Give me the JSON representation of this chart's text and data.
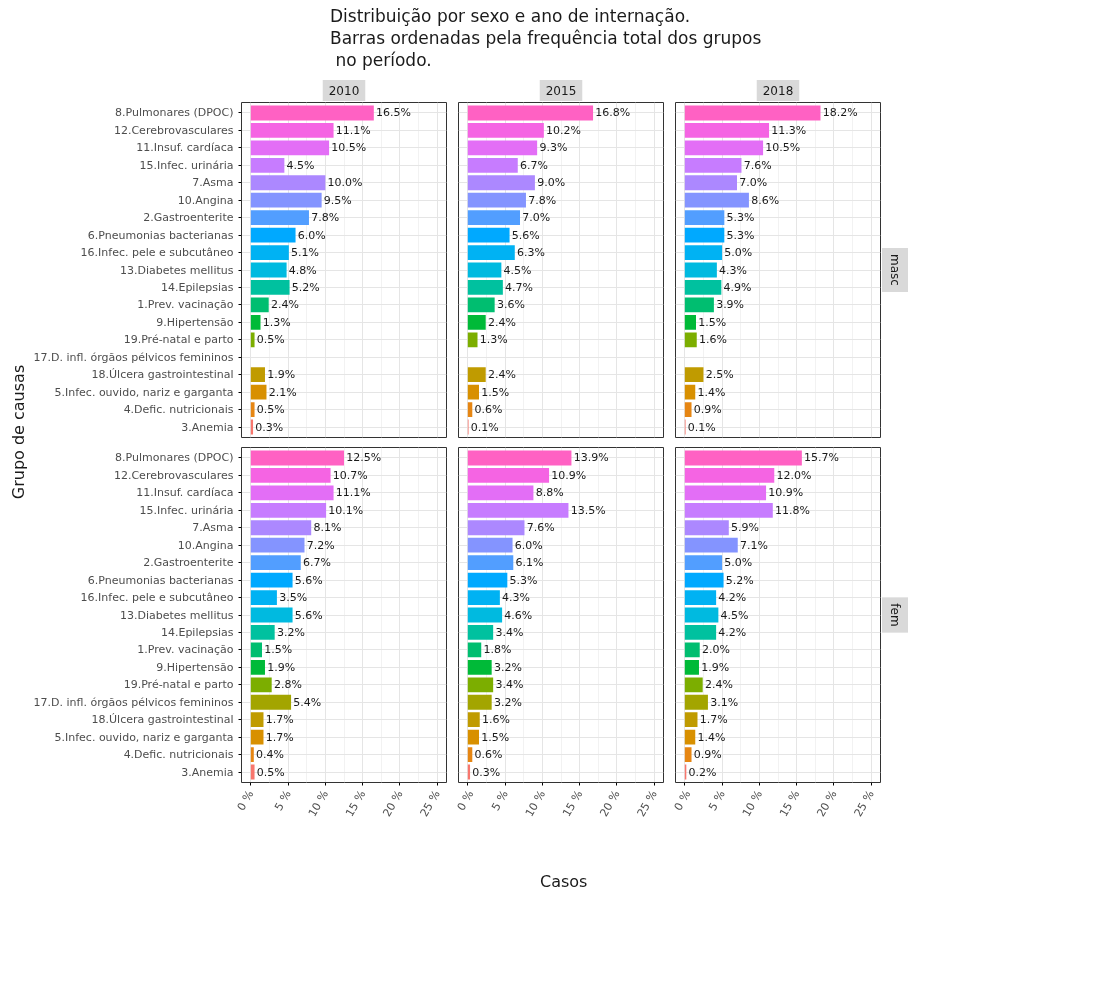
{
  "chart_data": [
    {
      "type": "other",
      "title": "Distribuição por sexo e ano de internação.\nBarras ordenadas pela frequência total dos grupos\n no período.",
      "xlabel": "Casos",
      "ylabel": "Grupo de causas"
    },
    {
      "type": "bar",
      "orientation": "horizontal",
      "title": "2010",
      "tick_labels": "y",
      "grid": true,
      "xlim": [
        -1.25,
        26.25
      ],
      "xticks": [
        0,
        5,
        10,
        15,
        20,
        25
      ],
      "categories": [
        "8.Pulmonares (DPOC)",
        "12.Cerebrovasculares",
        "11.Insuf. cardíaca",
        "15.Infec. urinária",
        "7.Asma",
        "10.Angina",
        "2.Gastroenterite",
        "6.Pneumonias bacterianas",
        "16.Infec. pele e subcutâneo",
        "13.Diabetes mellitus",
        "14.Epilepsias",
        "1.Prev. vacinação",
        "9.Hipertensão",
        "19.Pré-natal e parto",
        "17.D. infl. órgãos pélvicos femininos",
        "18.Úlcera gastrointestinal",
        "5.Infec. ouvido, nariz e garganta",
        "4.Defic. nutricionais",
        "3.Anemia"
      ],
      "colors": [
        "#ff61c3",
        "#f564e3",
        "#e36ef6",
        "#c77cff",
        "#ac88ff",
        "#8494ff",
        "#529eff",
        "#00a9ff",
        "#00b2f3",
        "#00bae0",
        "#00c19f",
        "#00be70",
        "#00ba38",
        "#7cae00",
        "#a3a500",
        "#c09b00",
        "#d89000",
        "#e68613",
        "#f8766d"
      ],
      "values": [
        16.5,
        11.1,
        10.5,
        4.5,
        10.0,
        9.5,
        7.8,
        6.0,
        5.1,
        4.8,
        5.2,
        2.4,
        1.3,
        0.5,
        null,
        1.9,
        2.1,
        0.5,
        0.3
      ],
      "value_labels": [
        "16.5%",
        "11.1%",
        "10.5%",
        "4.5%",
        "10.0%",
        "9.5%",
        "7.8%",
        "6.0%",
        "5.1%",
        "4.8%",
        "5.2%",
        "2.4%",
        "1.3%",
        "0.5%",
        null,
        "1.9%",
        "2.1%",
        "0.5%",
        "0.3%"
      ]
    },
    {
      "type": "bar",
      "orientation": "horizontal",
      "title": "2015",
      "tick_labels": false,
      "grid": true,
      "xlim": [
        -1.25,
        26.25
      ],
      "xticks": [
        0,
        5,
        10,
        15,
        20,
        25
      ],
      "categories": [
        null,
        null,
        null,
        null,
        null,
        null,
        null,
        null,
        null,
        null,
        null,
        null,
        null,
        null,
        null,
        null,
        null,
        null,
        null
      ],
      "colors": [
        "#ff61c3",
        "#f564e3",
        "#e36ef6",
        "#c77cff",
        "#ac88ff",
        "#8494ff",
        "#529eff",
        "#00a9ff",
        "#00b2f3",
        "#00bae0",
        "#00c19f",
        "#00be70",
        "#00ba38",
        "#7cae00",
        "#a3a500",
        "#c09b00",
        "#d89000",
        "#e68613",
        "#f8766d"
      ],
      "values": [
        16.8,
        10.2,
        9.3,
        6.7,
        9.0,
        7.8,
        7.0,
        5.6,
        6.3,
        4.5,
        4.7,
        3.6,
        2.4,
        1.3,
        null,
        2.4,
        1.5,
        0.6,
        0.1
      ],
      "value_labels": [
        "16.8%",
        "10.2%",
        "9.3%",
        "6.7%",
        "9.0%",
        "7.8%",
        "7.0%",
        "5.6%",
        "6.3%",
        "4.5%",
        "4.7%",
        "3.6%",
        "2.4%",
        "1.3%",
        null,
        "2.4%",
        "1.5%",
        "0.6%",
        "0.1%"
      ]
    },
    {
      "type": "bar",
      "orientation": "horizontal",
      "title": "2018",
      "y2label": "masc",
      "tick_labels": false,
      "grid": true,
      "xlim": [
        -1.25,
        26.25
      ],
      "xticks": [
        0,
        5,
        10,
        15,
        20,
        25
      ],
      "categories": [
        null,
        null,
        null,
        null,
        null,
        null,
        null,
        null,
        null,
        null,
        null,
        null,
        null,
        null,
        null,
        null,
        null,
        null,
        null
      ],
      "colors": [
        "#ff61c3",
        "#f564e3",
        "#e36ef6",
        "#c77cff",
        "#ac88ff",
        "#8494ff",
        "#529eff",
        "#00a9ff",
        "#00b2f3",
        "#00bae0",
        "#00c19f",
        "#00be70",
        "#00ba38",
        "#7cae00",
        "#a3a500",
        "#c09b00",
        "#d89000",
        "#e68613",
        "#f8766d"
      ],
      "values": [
        18.2,
        11.3,
        10.5,
        7.6,
        7.0,
        8.6,
        5.3,
        5.3,
        5.0,
        4.3,
        4.9,
        3.9,
        1.5,
        1.6,
        null,
        2.5,
        1.4,
        0.9,
        0.1
      ],
      "value_labels": [
        "18.2%",
        "11.3%",
        "10.5%",
        "7.6%",
        "7.0%",
        "8.6%",
        "5.3%",
        "5.3%",
        "5.0%",
        "4.3%",
        "4.9%",
        "3.9%",
        "1.5%",
        "1.6%",
        null,
        "2.5%",
        "1.4%",
        "0.9%",
        "0.1%"
      ]
    },
    {
      "type": "bar",
      "orientation": "horizontal",
      "grid": true,
      "xlim": [
        -1.25,
        26.25
      ],
      "xticks": [
        {
          "value": 0,
          "label": "0 %"
        },
        {
          "value": 5,
          "label": "5 %"
        },
        {
          "value": 10,
          "label": "10 %"
        },
        {
          "value": 15,
          "label": "15 %"
        },
        {
          "value": 20,
          "label": "20 %"
        },
        {
          "value": 25,
          "label": "25 %"
        }
      ],
      "categories": [
        "8.Pulmonares (DPOC)",
        "12.Cerebrovasculares",
        "11.Insuf. cardíaca",
        "15.Infec. urinária",
        "7.Asma",
        "10.Angina",
        "2.Gastroenterite",
        "6.Pneumonias bacterianas",
        "16.Infec. pele e subcutâneo",
        "13.Diabetes mellitus",
        "14.Epilepsias",
        "1.Prev. vacinação",
        "9.Hipertensão",
        "19.Pré-natal e parto",
        "17.D. infl. órgãos pélvicos femininos",
        "18.Úlcera gastrointestinal",
        "5.Infec. ouvido, nariz e garganta",
        "4.Defic. nutricionais",
        "3.Anemia"
      ],
      "colors": [
        "#ff61c3",
        "#f564e3",
        "#e36ef6",
        "#c77cff",
        "#ac88ff",
        "#8494ff",
        "#529eff",
        "#00a9ff",
        "#00b2f3",
        "#00bae0",
        "#00c19f",
        "#00be70",
        "#00ba38",
        "#7cae00",
        "#a3a500",
        "#c09b00",
        "#d89000",
        "#e68613",
        "#f8766d"
      ],
      "values": [
        12.5,
        10.7,
        11.1,
        10.1,
        8.1,
        7.2,
        6.7,
        5.6,
        3.5,
        5.6,
        3.2,
        1.5,
        1.9,
        2.8,
        5.4,
        1.7,
        1.7,
        0.4,
        0.5
      ],
      "value_labels": [
        "12.5%",
        "10.7%",
        "11.1%",
        "10.1%",
        "8.1%",
        "7.2%",
        "6.7%",
        "5.6%",
        "3.5%",
        "5.6%",
        "3.2%",
        "1.5%",
        "1.9%",
        "2.8%",
        "5.4%",
        "1.7%",
        "1.7%",
        "0.4%",
        "0.5%"
      ]
    },
    {
      "type": "bar",
      "orientation": "horizontal",
      "tick_labels": "x",
      "grid": true,
      "xlim": [
        -1.25,
        26.25
      ],
      "xticks": [
        {
          "value": 0,
          "label": "0 %"
        },
        {
          "value": 5,
          "label": "5 %"
        },
        {
          "value": 10,
          "label": "10 %"
        },
        {
          "value": 15,
          "label": "15 %"
        },
        {
          "value": 20,
          "label": "20 %"
        },
        {
          "value": 25,
          "label": "25 %"
        }
      ],
      "categories": [
        null,
        null,
        null,
        null,
        null,
        null,
        null,
        null,
        null,
        null,
        null,
        null,
        null,
        null,
        null,
        null,
        null,
        null,
        null
      ],
      "colors": [
        "#ff61c3",
        "#f564e3",
        "#e36ef6",
        "#c77cff",
        "#ac88ff",
        "#8494ff",
        "#529eff",
        "#00a9ff",
        "#00b2f3",
        "#00bae0",
        "#00c19f",
        "#00be70",
        "#00ba38",
        "#7cae00",
        "#a3a500",
        "#c09b00",
        "#d89000",
        "#e68613",
        "#f8766d"
      ],
      "values": [
        13.9,
        10.9,
        8.8,
        13.5,
        7.6,
        6.0,
        6.1,
        5.3,
        4.3,
        4.6,
        3.4,
        1.8,
        3.2,
        3.4,
        3.2,
        1.6,
        1.5,
        0.6,
        0.3
      ],
      "value_labels": [
        "13.9%",
        "10.9%",
        "8.8%",
        "13.5%",
        "7.6%",
        "6.0%",
        "6.1%",
        "5.3%",
        "4.3%",
        "4.6%",
        "3.4%",
        "1.8%",
        "3.2%",
        "3.4%",
        "3.2%",
        "1.6%",
        "1.5%",
        "0.6%",
        "0.3%"
      ]
    },
    {
      "type": "bar",
      "orientation": "horizontal",
      "y2label": "fem",
      "tick_labels": "x",
      "grid": true,
      "xlim": [
        -1.25,
        26.25
      ],
      "xticks": [
        {
          "value": 0,
          "label": "0 %"
        },
        {
          "value": 5,
          "label": "5 %"
        },
        {
          "value": 10,
          "label": "10 %"
        },
        {
          "value": 15,
          "label": "15 %"
        },
        {
          "value": 20,
          "label": "20 %"
        },
        {
          "value": 25,
          "label": "25 %"
        }
      ],
      "categories": [
        null,
        null,
        null,
        null,
        null,
        null,
        null,
        null,
        null,
        null,
        null,
        null,
        null,
        null,
        null,
        null,
        null,
        null,
        null
      ],
      "colors": [
        "#ff61c3",
        "#f564e3",
        "#e36ef6",
        "#c77cff",
        "#ac88ff",
        "#8494ff",
        "#529eff",
        "#00a9ff",
        "#00b2f3",
        "#00bae0",
        "#00c19f",
        "#00be70",
        "#00ba38",
        "#7cae00",
        "#a3a500",
        "#c09b00",
        "#d89000",
        "#e68613",
        "#f8766d"
      ],
      "values": [
        15.7,
        12.0,
        10.9,
        11.8,
        5.9,
        7.1,
        5.0,
        5.2,
        4.2,
        4.5,
        4.2,
        2.0,
        1.9,
        2.4,
        3.1,
        1.7,
        1.4,
        0.9,
        0.2
      ],
      "value_labels": [
        "15.7%",
        "12.0%",
        "10.9%",
        "11.8%",
        "5.9%",
        "7.1%",
        "5.0%",
        "5.2%",
        "4.2%",
        "4.5%",
        "4.2%",
        "2.0%",
        "1.9%",
        "2.4%",
        "3.1%",
        "1.7%",
        "1.4%",
        "0.9%",
        "0.2%"
      ]
    }
  ]
}
